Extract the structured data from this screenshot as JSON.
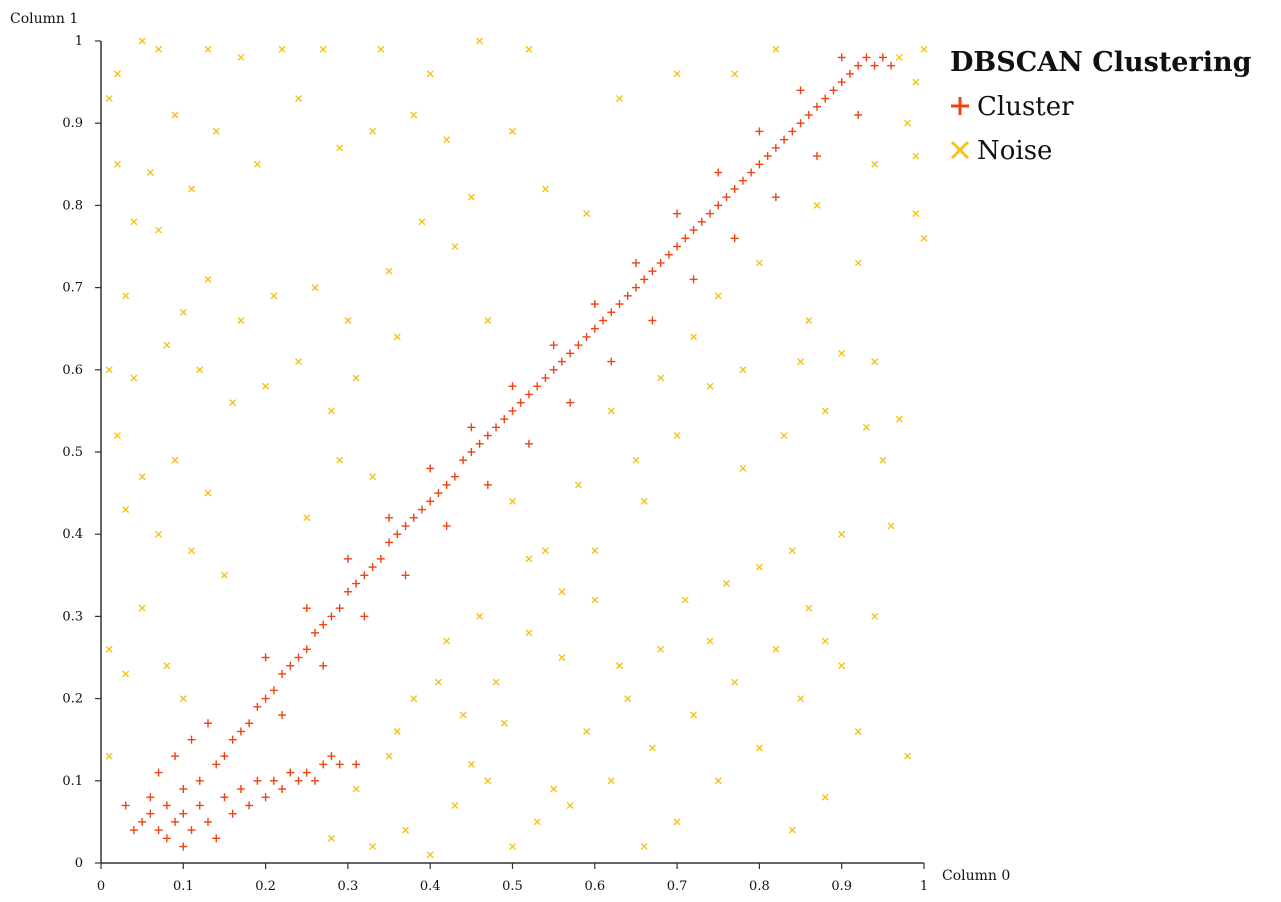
{
  "chart_data": {
    "type": "scatter",
    "title": "DBSCAN Clustering",
    "xlabel": "Column 0",
    "ylabel": "Column 1",
    "xlim": [
      0,
      1
    ],
    "ylim": [
      0,
      1
    ],
    "x_ticks": [
      "0",
      "0.1",
      "0.2",
      "0.3",
      "0.4",
      "0.5",
      "0.6",
      "0.7",
      "0.8",
      "0.9",
      "1"
    ],
    "y_ticks": [
      "0",
      "0.1",
      "0.2",
      "0.3",
      "0.4",
      "0.5",
      "0.6",
      "0.7",
      "0.8",
      "0.9",
      "1"
    ],
    "grid": false,
    "legend_position": "top-right",
    "series": [
      {
        "name": "Cluster",
        "marker": "plus",
        "color": "#ee4411",
        "points": [
          [
            0.05,
            0.05
          ],
          [
            0.06,
            0.06
          ],
          [
            0.07,
            0.04
          ],
          [
            0.08,
            0.07
          ],
          [
            0.09,
            0.05
          ],
          [
            0.1,
            0.06
          ],
          [
            0.11,
            0.04
          ],
          [
            0.12,
            0.07
          ],
          [
            0.13,
            0.05
          ],
          [
            0.06,
            0.08
          ],
          [
            0.08,
            0.03
          ],
          [
            0.1,
            0.09
          ],
          [
            0.12,
            0.1
          ],
          [
            0.14,
            0.12
          ],
          [
            0.15,
            0.13
          ],
          [
            0.16,
            0.15
          ],
          [
            0.17,
            0.16
          ],
          [
            0.18,
            0.17
          ],
          [
            0.19,
            0.19
          ],
          [
            0.2,
            0.2
          ],
          [
            0.21,
            0.21
          ],
          [
            0.22,
            0.23
          ],
          [
            0.23,
            0.24
          ],
          [
            0.24,
            0.25
          ],
          [
            0.25,
            0.26
          ],
          [
            0.26,
            0.28
          ],
          [
            0.27,
            0.29
          ],
          [
            0.28,
            0.3
          ],
          [
            0.29,
            0.31
          ],
          [
            0.3,
            0.33
          ],
          [
            0.31,
            0.34
          ],
          [
            0.32,
            0.35
          ],
          [
            0.33,
            0.36
          ],
          [
            0.34,
            0.37
          ],
          [
            0.35,
            0.39
          ],
          [
            0.36,
            0.4
          ],
          [
            0.37,
            0.41
          ],
          [
            0.38,
            0.42
          ],
          [
            0.39,
            0.43
          ],
          [
            0.4,
            0.44
          ],
          [
            0.41,
            0.45
          ],
          [
            0.42,
            0.46
          ],
          [
            0.43,
            0.47
          ],
          [
            0.44,
            0.49
          ],
          [
            0.45,
            0.5
          ],
          [
            0.46,
            0.51
          ],
          [
            0.47,
            0.52
          ],
          [
            0.48,
            0.53
          ],
          [
            0.49,
            0.54
          ],
          [
            0.5,
            0.55
          ],
          [
            0.51,
            0.56
          ],
          [
            0.52,
            0.57
          ],
          [
            0.53,
            0.58
          ],
          [
            0.54,
            0.59
          ],
          [
            0.55,
            0.6
          ],
          [
            0.56,
            0.61
          ],
          [
            0.57,
            0.62
          ],
          [
            0.58,
            0.63
          ],
          [
            0.59,
            0.64
          ],
          [
            0.6,
            0.65
          ],
          [
            0.61,
            0.66
          ],
          [
            0.62,
            0.67
          ],
          [
            0.63,
            0.68
          ],
          [
            0.64,
            0.69
          ],
          [
            0.65,
            0.7
          ],
          [
            0.66,
            0.71
          ],
          [
            0.67,
            0.72
          ],
          [
            0.68,
            0.73
          ],
          [
            0.69,
            0.74
          ],
          [
            0.7,
            0.75
          ],
          [
            0.71,
            0.76
          ],
          [
            0.72,
            0.77
          ],
          [
            0.73,
            0.78
          ],
          [
            0.74,
            0.79
          ],
          [
            0.75,
            0.8
          ],
          [
            0.76,
            0.81
          ],
          [
            0.77,
            0.82
          ],
          [
            0.78,
            0.83
          ],
          [
            0.79,
            0.84
          ],
          [
            0.8,
            0.85
          ],
          [
            0.81,
            0.86
          ],
          [
            0.82,
            0.87
          ],
          [
            0.83,
            0.88
          ],
          [
            0.84,
            0.89
          ],
          [
            0.85,
            0.9
          ],
          [
            0.86,
            0.91
          ],
          [
            0.87,
            0.92
          ],
          [
            0.88,
            0.93
          ],
          [
            0.89,
            0.94
          ],
          [
            0.9,
            0.95
          ],
          [
            0.91,
            0.96
          ],
          [
            0.92,
            0.97
          ],
          [
            0.93,
            0.98
          ],
          [
            0.94,
            0.97
          ],
          [
            0.95,
            0.98
          ],
          [
            0.96,
            0.97
          ],
          [
            0.15,
            0.08
          ],
          [
            0.17,
            0.09
          ],
          [
            0.19,
            0.1
          ],
          [
            0.21,
            0.1
          ],
          [
            0.23,
            0.11
          ],
          [
            0.25,
            0.11
          ],
          [
            0.27,
            0.12
          ],
          [
            0.29,
            0.12
          ],
          [
            0.31,
            0.12
          ],
          [
            0.16,
            0.06
          ],
          [
            0.18,
            0.07
          ],
          [
            0.2,
            0.08
          ],
          [
            0.22,
            0.09
          ],
          [
            0.24,
            0.1
          ],
          [
            0.26,
            0.1
          ],
          [
            0.28,
            0.13
          ],
          [
            0.14,
            0.03
          ],
          [
            0.1,
            0.02
          ],
          [
            0.04,
            0.04
          ],
          [
            0.03,
            0.07
          ],
          [
            0.07,
            0.11
          ],
          [
            0.09,
            0.13
          ],
          [
            0.11,
            0.15
          ],
          [
            0.13,
            0.17
          ],
          [
            0.2,
            0.25
          ],
          [
            0.25,
            0.31
          ],
          [
            0.3,
            0.37
          ],
          [
            0.35,
            0.42
          ],
          [
            0.4,
            0.48
          ],
          [
            0.45,
            0.53
          ],
          [
            0.5,
            0.58
          ],
          [
            0.55,
            0.63
          ],
          [
            0.6,
            0.68
          ],
          [
            0.65,
            0.73
          ],
          [
            0.7,
            0.79
          ],
          [
            0.75,
            0.84
          ],
          [
            0.8,
            0.89
          ],
          [
            0.85,
            0.94
          ],
          [
            0.9,
            0.98
          ],
          [
            0.22,
            0.18
          ],
          [
            0.27,
            0.24
          ],
          [
            0.32,
            0.3
          ],
          [
            0.37,
            0.35
          ],
          [
            0.42,
            0.41
          ],
          [
            0.47,
            0.46
          ],
          [
            0.52,
            0.51
          ],
          [
            0.57,
            0.56
          ],
          [
            0.62,
            0.61
          ],
          [
            0.67,
            0.66
          ],
          [
            0.72,
            0.71
          ],
          [
            0.77,
            0.76
          ],
          [
            0.82,
            0.81
          ],
          [
            0.87,
            0.86
          ],
          [
            0.92,
            0.91
          ]
        ]
      },
      {
        "name": "Noise",
        "marker": "cross",
        "color": "#f6c218",
        "points": [
          [
            0.01,
            0.93
          ],
          [
            0.02,
            0.96
          ],
          [
            0.05,
            1.0
          ],
          [
            0.07,
            0.99
          ],
          [
            0.13,
            0.99
          ],
          [
            0.17,
            0.98
          ],
          [
            0.22,
            0.99
          ],
          [
            0.27,
            0.99
          ],
          [
            0.34,
            0.99
          ],
          [
            0.4,
            0.96
          ],
          [
            0.46,
            1.0
          ],
          [
            0.52,
            0.99
          ],
          [
            0.63,
            0.93
          ],
          [
            0.7,
            0.96
          ],
          [
            0.77,
            0.96
          ],
          [
            0.82,
            0.99
          ],
          [
            0.97,
            0.98
          ],
          [
            0.99,
            0.95
          ],
          [
            1.0,
            0.99
          ],
          [
            0.98,
            0.9
          ],
          [
            0.99,
            0.86
          ],
          [
            1.0,
            0.76
          ],
          [
            0.99,
            0.79
          ],
          [
            0.94,
            0.85
          ],
          [
            0.92,
            0.73
          ],
          [
            0.9,
            0.62
          ],
          [
            0.86,
            0.66
          ],
          [
            0.88,
            0.55
          ],
          [
            0.93,
            0.53
          ],
          [
            0.95,
            0.49
          ],
          [
            0.9,
            0.4
          ],
          [
            0.94,
            0.3
          ],
          [
            0.88,
            0.27
          ],
          [
            0.85,
            0.2
          ],
          [
            0.92,
            0.16
          ],
          [
            0.88,
            0.08
          ],
          [
            0.84,
            0.04
          ],
          [
            0.8,
            0.14
          ],
          [
            0.75,
            0.1
          ],
          [
            0.7,
            0.05
          ],
          [
            0.66,
            0.02
          ],
          [
            0.62,
            0.1
          ],
          [
            0.57,
            0.07
          ],
          [
            0.53,
            0.05
          ],
          [
            0.5,
            0.02
          ],
          [
            0.47,
            0.1
          ],
          [
            0.43,
            0.07
          ],
          [
            0.4,
            0.01
          ],
          [
            0.37,
            0.04
          ],
          [
            0.33,
            0.02
          ],
          [
            0.35,
            0.13
          ],
          [
            0.38,
            0.2
          ],
          [
            0.44,
            0.18
          ],
          [
            0.48,
            0.22
          ],
          [
            0.52,
            0.28
          ],
          [
            0.56,
            0.25
          ],
          [
            0.6,
            0.32
          ],
          [
            0.64,
            0.2
          ],
          [
            0.68,
            0.26
          ],
          [
            0.72,
            0.18
          ],
          [
            0.76,
            0.34
          ],
          [
            0.8,
            0.36
          ],
          [
            0.84,
            0.38
          ],
          [
            0.78,
            0.48
          ],
          [
            0.74,
            0.58
          ],
          [
            0.7,
            0.52
          ],
          [
            0.66,
            0.44
          ],
          [
            0.62,
            0.55
          ],
          [
            0.58,
            0.46
          ],
          [
            0.54,
            0.38
          ],
          [
            0.5,
            0.44
          ],
          [
            0.46,
            0.3
          ],
          [
            0.42,
            0.27
          ],
          [
            0.02,
            0.85
          ],
          [
            0.04,
            0.78
          ],
          [
            0.06,
            0.84
          ],
          [
            0.09,
            0.91
          ],
          [
            0.11,
            0.82
          ],
          [
            0.14,
            0.89
          ],
          [
            0.19,
            0.85
          ],
          [
            0.24,
            0.93
          ],
          [
            0.29,
            0.87
          ],
          [
            0.33,
            0.89
          ],
          [
            0.38,
            0.91
          ],
          [
            0.42,
            0.88
          ],
          [
            0.45,
            0.81
          ],
          [
            0.5,
            0.89
          ],
          [
            0.54,
            0.82
          ],
          [
            0.59,
            0.79
          ],
          [
            0.03,
            0.69
          ],
          [
            0.07,
            0.77
          ],
          [
            0.1,
            0.67
          ],
          [
            0.13,
            0.71
          ],
          [
            0.17,
            0.66
          ],
          [
            0.21,
            0.69
          ],
          [
            0.26,
            0.7
          ],
          [
            0.3,
            0.66
          ],
          [
            0.35,
            0.72
          ],
          [
            0.39,
            0.78
          ],
          [
            0.43,
            0.75
          ],
          [
            0.47,
            0.66
          ],
          [
            0.01,
            0.6
          ],
          [
            0.04,
            0.59
          ],
          [
            0.08,
            0.63
          ],
          [
            0.12,
            0.6
          ],
          [
            0.16,
            0.56
          ],
          [
            0.2,
            0.58
          ],
          [
            0.24,
            0.61
          ],
          [
            0.28,
            0.55
          ],
          [
            0.31,
            0.59
          ],
          [
            0.36,
            0.64
          ],
          [
            0.02,
            0.52
          ],
          [
            0.05,
            0.47
          ],
          [
            0.09,
            0.49
          ],
          [
            0.13,
            0.45
          ],
          [
            0.03,
            0.43
          ],
          [
            0.07,
            0.4
          ],
          [
            0.11,
            0.38
          ],
          [
            0.15,
            0.35
          ],
          [
            0.01,
            0.26
          ],
          [
            0.03,
            0.23
          ],
          [
            0.05,
            0.31
          ],
          [
            0.08,
            0.24
          ],
          [
            0.1,
            0.2
          ],
          [
            0.01,
            0.13
          ],
          [
            0.25,
            0.42
          ],
          [
            0.29,
            0.49
          ],
          [
            0.33,
            0.47
          ],
          [
            0.28,
            0.03
          ],
          [
            0.31,
            0.09
          ],
          [
            0.36,
            0.16
          ],
          [
            0.41,
            0.22
          ],
          [
            0.45,
            0.12
          ],
          [
            0.49,
            0.17
          ],
          [
            0.55,
            0.09
          ],
          [
            0.59,
            0.16
          ],
          [
            0.63,
            0.24
          ],
          [
            0.67,
            0.14
          ],
          [
            0.71,
            0.32
          ],
          [
            0.74,
            0.27
          ],
          [
            0.77,
            0.22
          ],
          [
            0.82,
            0.26
          ],
          [
            0.86,
            0.31
          ],
          [
            0.9,
            0.24
          ],
          [
            0.94,
            0.61
          ],
          [
            0.96,
            0.41
          ],
          [
            0.98,
            0.13
          ],
          [
            0.97,
            0.54
          ],
          [
            0.83,
            0.52
          ],
          [
            0.85,
            0.61
          ],
          [
            0.8,
            0.73
          ],
          [
            0.87,
            0.8
          ],
          [
            0.75,
            0.69
          ],
          [
            0.78,
            0.6
          ],
          [
            0.72,
            0.64
          ],
          [
            0.68,
            0.59
          ],
          [
            0.65,
            0.49
          ],
          [
            0.6,
            0.38
          ],
          [
            0.56,
            0.33
          ],
          [
            0.52,
            0.37
          ]
        ]
      }
    ]
  }
}
